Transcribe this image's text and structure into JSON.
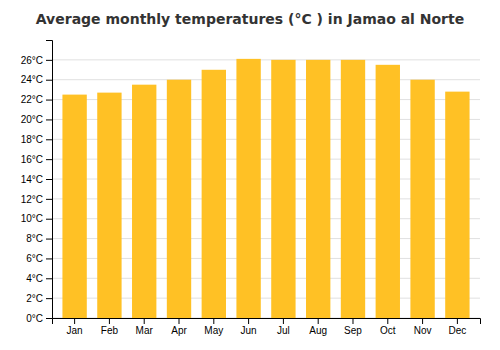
{
  "chart_data": {
    "type": "bar",
    "title": "Average monthly temperatures (°C ) in Jamao al Norte",
    "categories": [
      "Jan",
      "Feb",
      "Mar",
      "Apr",
      "May",
      "Jun",
      "Jul",
      "Aug",
      "Sep",
      "Oct",
      "Nov",
      "Dec"
    ],
    "values": [
      22.5,
      22.7,
      23.5,
      24.0,
      25.0,
      26.1,
      26.0,
      26.0,
      26.0,
      25.5,
      24.0,
      22.8
    ],
    "color": "#FFC125",
    "ylim": [
      0,
      28
    ],
    "yticks": [
      {
        "value": 0,
        "label": "0°C"
      },
      {
        "value": 2,
        "label": "2°C"
      },
      {
        "value": 4,
        "label": "4°C"
      },
      {
        "value": 6,
        "label": "6°C"
      },
      {
        "value": 8,
        "label": "8°C"
      },
      {
        "value": 10,
        "label": "10°C"
      },
      {
        "value": 12,
        "label": "12°C"
      },
      {
        "value": 14,
        "label": "14°C"
      },
      {
        "value": 16,
        "label": "16°C"
      },
      {
        "value": 18,
        "label": "18°C"
      },
      {
        "value": 20,
        "label": "20°C"
      },
      {
        "value": 22,
        "label": "22°C"
      },
      {
        "value": 24,
        "label": "24°C"
      },
      {
        "value": 26,
        "label": "26°C"
      }
    ],
    "grid": true
  }
}
